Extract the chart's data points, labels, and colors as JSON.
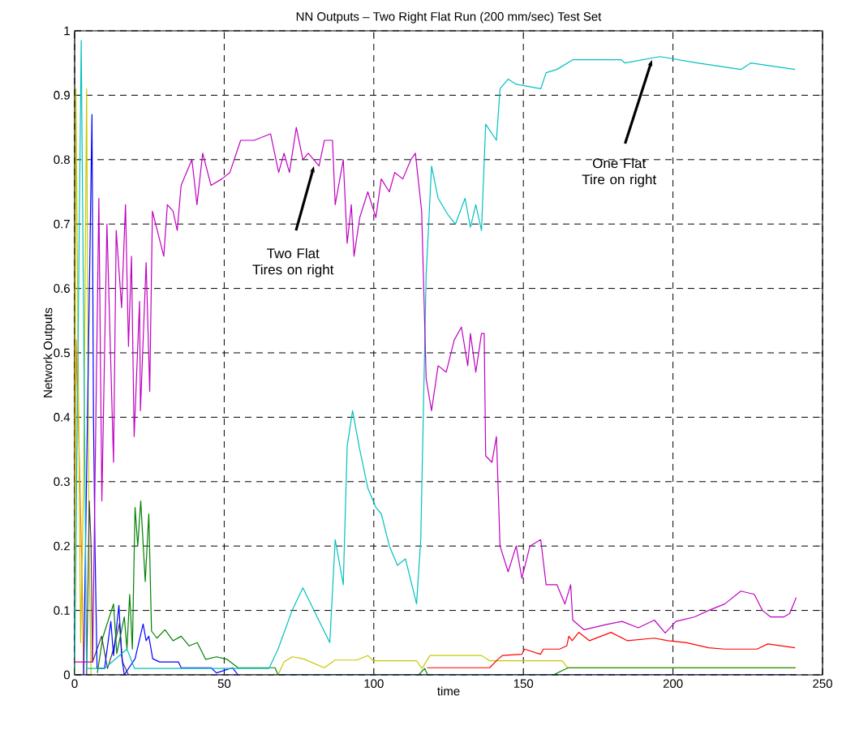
{
  "chart_data": {
    "type": "line",
    "title": "NN Outputs – Two Right Flat Run (200 mm/sec) Test Set",
    "xlabel": "time",
    "ylabel": "Network Outputs",
    "xlim": [
      0,
      250
    ],
    "ylim": [
      0,
      1
    ],
    "xticks": [
      0,
      50,
      100,
      150,
      200,
      250
    ],
    "yticks": [
      0,
      0.1,
      0.2,
      0.3,
      0.4,
      0.5,
      0.6,
      0.7,
      0.8,
      0.9,
      1
    ],
    "grid": true,
    "annotations": [
      {
        "text": "Two Flat Tires on right",
        "x": 80,
        "y": 0.79
      },
      {
        "text": "One Flat Tire on right",
        "x": 193,
        "y": 0.955
      }
    ],
    "series": [
      {
        "color": "#ff8000",
        "x": [
          0,
          0.5,
          1.5,
          2.5,
          3
        ],
        "values": [
          0,
          0.52,
          0.35,
          0.15,
          0
        ]
      },
      {
        "color": "#c8c800",
        "x": [
          0,
          0.4,
          1,
          2,
          3,
          4,
          4.8,
          5.5,
          68,
          70,
          72.7,
          76.3,
          83.5,
          87,
          94.3,
          98,
          99.8,
          114.3,
          116.1,
          118.8,
          136,
          138.7,
          163,
          164.8,
          165.7,
          241
        ],
        "values": [
          0,
          0.91,
          0.6,
          0.05,
          0.3,
          0.91,
          0.2,
          0,
          0,
          0.02,
          0.028,
          0.025,
          0.011,
          0.023,
          0.023,
          0.03,
          0.022,
          0.022,
          0.01,
          0.03,
          0.03,
          0.022,
          0.022,
          0.011,
          0.011,
          0.011
        ]
      },
      {
        "color": "#404040",
        "x": [
          4,
          4.9,
          5.5,
          6,
          9,
          11,
          13,
          15,
          16,
          18
        ],
        "values": [
          0,
          0.27,
          0.2,
          0.02,
          0.06,
          0.01,
          0.04,
          0.08,
          0.02,
          0
        ]
      },
      {
        "color": "#0000ff",
        "x": [
          3,
          5.8,
          6.3,
          6.8,
          7.5,
          10,
          12.1,
          13,
          14.8,
          15.7,
          16.6,
          20.2,
          22.9,
          23.9,
          24.8,
          26.1,
          28.4,
          34.7,
          35.6,
          45.6,
          47.4,
          52.8,
          54.6
        ],
        "values": [
          0,
          0.87,
          0.4,
          0.2,
          0.01,
          0.01,
          0.083,
          0.03,
          0.108,
          0.03,
          0,
          0.025,
          0.079,
          0.053,
          0.06,
          0.025,
          0.02,
          0.02,
          0.011,
          0.011,
          0.003,
          0.011,
          0
        ]
      },
      {
        "color": "#008000",
        "x": [
          7.6,
          9.4,
          13,
          14.1,
          16.6,
          17.5,
          18.4,
          19.3,
          20.2,
          21.1,
          22.1,
          23.6,
          24.8,
          25.7,
          27.5,
          30.2,
          32.9,
          35.6,
          38.3,
          41,
          43.8,
          47.4,
          51,
          54.6,
          67,
          68,
          115,
          117,
          118,
          160,
          165,
          241
        ],
        "values": [
          0.003,
          0.058,
          0.11,
          0.033,
          0.09,
          0.04,
          0.125,
          0.04,
          0.26,
          0.2,
          0.27,
          0.145,
          0.25,
          0.068,
          0.057,
          0.07,
          0.053,
          0.06,
          0.045,
          0.05,
          0.024,
          0.028,
          0.024,
          0.011,
          0.011,
          0,
          0,
          0.01,
          0,
          0,
          0.011,
          0.011
        ]
      },
      {
        "color": "#ff0000",
        "x": [
          117.8,
          138.7,
          141.7,
          143,
          149.5,
          150.4,
          155.7,
          156.7,
          162.1,
          164.5,
          165.2,
          166.3,
          168.5,
          172.1,
          179.3,
          184.8,
          193.8,
          198.3,
          204.6,
          211.9,
          217.3,
          228.1,
          231.7,
          240.8
        ],
        "values": [
          0.011,
          0.011,
          0.025,
          0.03,
          0.032,
          0.04,
          0.032,
          0.04,
          0.04,
          0.045,
          0.06,
          0.053,
          0.066,
          0.053,
          0.066,
          0.053,
          0.057,
          0.053,
          0.05,
          0.042,
          0.04,
          0.04,
          0.048,
          0.042
        ]
      },
      {
        "color": "#00c0c0",
        "x": [
          0,
          2.2,
          4,
          10,
          17.5,
          20,
          38,
          65,
          68,
          72.7,
          76.3,
          80,
          85.3,
          87.1,
          89.8,
          91.1,
          92.9,
          95.3,
          98,
          100.7,
          102.5,
          105.2,
          107.9,
          110.6,
          114.3,
          115.7,
          117.5,
          119.3,
          121.5,
          124.7,
          127.3,
          130.5,
          132.3,
          134.1,
          136,
          137.4,
          141,
          142.2,
          144.9,
          147.6,
          155.8,
          157.6,
          161.2,
          166.5,
          182.7,
          184,
          195.6,
          208.2,
          222.7,
          226,
          240.8
        ],
        "values": [
          0,
          0.985,
          0.01,
          0.01,
          0.04,
          0.01,
          0.01,
          0.01,
          0.04,
          0.1,
          0.135,
          0.1,
          0.05,
          0.21,
          0.14,
          0.355,
          0.41,
          0.35,
          0.29,
          0.26,
          0.25,
          0.2,
          0.17,
          0.18,
          0.11,
          0.21,
          0.62,
          0.79,
          0.74,
          0.715,
          0.7,
          0.74,
          0.695,
          0.73,
          0.69,
          0.855,
          0.83,
          0.91,
          0.925,
          0.917,
          0.91,
          0.935,
          0.94,
          0.955,
          0.955,
          0.95,
          0.96,
          0.95,
          0.94,
          0.95,
          0.94
        ]
      },
      {
        "color": "#c000c0",
        "x": [
          0,
          6,
          8.1,
          9.1,
          10.8,
          13,
          13.9,
          15.7,
          17,
          18,
          19,
          19.9,
          21.7,
          22,
          23.9,
          25.1,
          26,
          29.8,
          31,
          32.9,
          34.3,
          35.6,
          39.2,
          40.9,
          42.8,
          45.6,
          49.2,
          51.9,
          55.5,
          60,
          65.5,
          68.2,
          70,
          71.8,
          74.1,
          76.3,
          78.1,
          81.7,
          83.5,
          86.2,
          87.1,
          89.8,
          91.1,
          92.5,
          93.4,
          95.3,
          98,
          100.7,
          102.5,
          105.2,
          107,
          109.7,
          112.4,
          113.9,
          116,
          117.5,
          119.3,
          121.5,
          124.2,
          126.9,
          129.3,
          131.4,
          132.3,
          134.1,
          136,
          136.9,
          137.4,
          139.5,
          141,
          142.2,
          144.9,
          147.6,
          149.5,
          152.2,
          155.8,
          157.6,
          161.2,
          163.9,
          165.8,
          166.5,
          170.3,
          177.5,
          183,
          188.4,
          193.8,
          197.4,
          201,
          207.3,
          211.9,
          217.3,
          222.7,
          227.2,
          229.9,
          232.6,
          237.1,
          239,
          241.2
        ],
        "values": [
          0.02,
          0.02,
          0.74,
          0.27,
          0.7,
          0.33,
          0.69,
          0.57,
          0.73,
          0.51,
          0.65,
          0.37,
          0.58,
          0.41,
          0.64,
          0.44,
          0.72,
          0.65,
          0.73,
          0.72,
          0.69,
          0.76,
          0.8,
          0.73,
          0.81,
          0.76,
          0.77,
          0.78,
          0.83,
          0.83,
          0.84,
          0.78,
          0.81,
          0.78,
          0.85,
          0.8,
          0.81,
          0.79,
          0.83,
          0.83,
          0.73,
          0.8,
          0.67,
          0.73,
          0.65,
          0.71,
          0.75,
          0.71,
          0.77,
          0.75,
          0.78,
          0.77,
          0.8,
          0.81,
          0.72,
          0.46,
          0.41,
          0.48,
          0.47,
          0.52,
          0.54,
          0.48,
          0.53,
          0.47,
          0.53,
          0.53,
          0.34,
          0.33,
          0.37,
          0.2,
          0.16,
          0.2,
          0.15,
          0.2,
          0.21,
          0.14,
          0.14,
          0.11,
          0.14,
          0.085,
          0.07,
          0.078,
          0.083,
          0.073,
          0.085,
          0.065,
          0.083,
          0.09,
          0.1,
          0.11,
          0.13,
          0.125,
          0.1,
          0.09,
          0.09,
          0.095,
          0.12
        ]
      },
      {
        "color": "#000080",
        "x": [
          0,
          241
        ],
        "values": [
          0,
          0
        ]
      }
    ]
  }
}
